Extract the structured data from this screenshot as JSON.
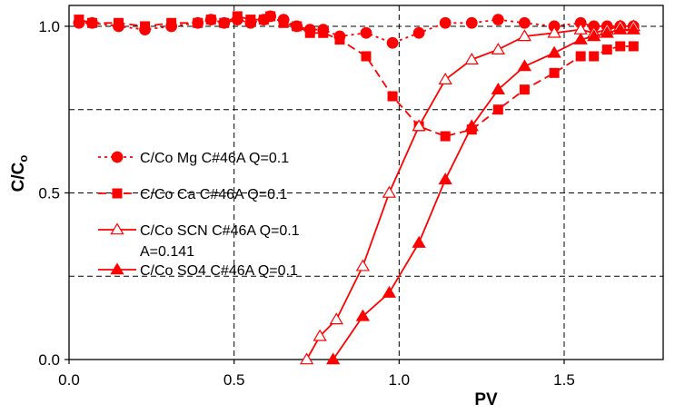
{
  "chart_data": {
    "type": "scatter",
    "xlabel": "PV",
    "ylabel": "C/C",
    "ylabel_subscript": "o",
    "xlim": [
      0,
      1.8
    ],
    "ylim": [
      0,
      1.0625
    ],
    "x_ticks": [
      "0.0",
      "0.5",
      "1.0",
      "1.5"
    ],
    "y_ticks": [
      "0.0",
      "0.5",
      "1.0"
    ],
    "x_tick_values": [
      0,
      0.5,
      1.0,
      1.5
    ],
    "y_tick_values": [
      0,
      0.5,
      1.0
    ],
    "grid_x": [
      0.5,
      1.0,
      1.5
    ],
    "grid_y": [
      0.25,
      0.5,
      0.75,
      1.0
    ],
    "grid": "dashed",
    "legend_position": "center-left",
    "color": "#ff0000",
    "series": [
      {
        "name": "C/Co Mg C#46A Q=0.1",
        "marker": "circle",
        "line": "dotted",
        "x": [
          0.03,
          0.07,
          0.15,
          0.23,
          0.31,
          0.39,
          0.43,
          0.47,
          0.51,
          0.55,
          0.59,
          0.61,
          0.65,
          0.69,
          0.73,
          0.77,
          0.82,
          0.9,
          0.98,
          1.06,
          1.14,
          1.22,
          1.3,
          1.38,
          1.47,
          1.55,
          1.59,
          1.63,
          1.67,
          1.71
        ],
        "y": [
          1.01,
          1.01,
          1.0,
          0.99,
          1.0,
          1.01,
          1.02,
          1.01,
          1.02,
          1.01,
          1.02,
          1.03,
          1.02,
          1.0,
          0.99,
          0.99,
          0.97,
          0.98,
          0.95,
          0.98,
          1.01,
          1.01,
          1.02,
          1.01,
          1.0,
          1.01,
          1.0,
          1.0,
          1.0,
          1.0
        ]
      },
      {
        "name": "C/Co Ca C#46A Q=0.1",
        "marker": "square",
        "line": "dashed",
        "x": [
          0.03,
          0.07,
          0.15,
          0.23,
          0.31,
          0.39,
          0.43,
          0.47,
          0.51,
          0.55,
          0.59,
          0.61,
          0.65,
          0.69,
          0.73,
          0.77,
          0.82,
          0.9,
          0.98,
          1.06,
          1.14,
          1.22,
          1.3,
          1.38,
          1.47,
          1.55,
          1.59,
          1.63,
          1.67,
          1.71
        ],
        "y": [
          1.02,
          1.01,
          1.01,
          1.0,
          1.01,
          1.01,
          1.02,
          1.01,
          1.03,
          1.02,
          1.02,
          1.03,
          1.01,
          1.0,
          0.98,
          0.98,
          0.96,
          0.91,
          0.79,
          0.7,
          0.67,
          0.69,
          0.75,
          0.81,
          0.86,
          0.91,
          0.91,
          0.93,
          0.94,
          0.94
        ]
      },
      {
        "name": "C/Co SCN C#46A Q=0.1",
        "marker": "triangle-open",
        "line": "solid",
        "x": [
          0.72,
          0.76,
          0.81,
          0.89,
          0.97,
          1.06,
          1.14,
          1.22,
          1.3,
          1.38,
          1.47,
          1.55,
          1.59,
          1.63,
          1.67,
          1.71
        ],
        "y": [
          0.0,
          0.07,
          0.12,
          0.28,
          0.5,
          0.7,
          0.84,
          0.9,
          0.93,
          0.97,
          0.98,
          0.99,
          0.98,
          0.99,
          1.0,
          1.0
        ]
      },
      {
        "name": "C/Co SO4 C#46A Q=0.1",
        "marker": "triangle",
        "line": "solid",
        "x": [
          0.8,
          0.89,
          0.97,
          1.06,
          1.14,
          1.22,
          1.3,
          1.38,
          1.47,
          1.55,
          1.59,
          1.63,
          1.67,
          1.71
        ],
        "y": [
          0.0,
          0.13,
          0.2,
          0.35,
          0.54,
          0.7,
          0.81,
          0.88,
          0.92,
          0.96,
          0.97,
          0.98,
          0.99,
          0.99
        ]
      }
    ],
    "annotations": [
      "A=0.141"
    ]
  }
}
